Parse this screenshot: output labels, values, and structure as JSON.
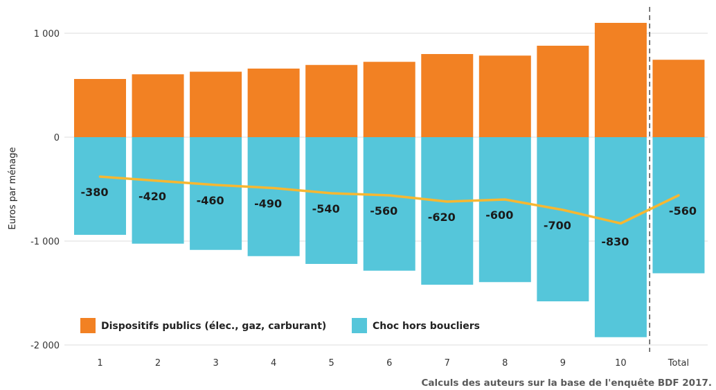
{
  "chart_data": {
    "type": "bar",
    "categories": [
      "1",
      "2",
      "3",
      "4",
      "5",
      "6",
      "7",
      "8",
      "9",
      "10",
      "Total"
    ],
    "series": [
      {
        "name": "Dispositifs publics (élec., gaz, carburant)",
        "values": [
          560,
          605,
          630,
          660,
          695,
          725,
          800,
          785,
          880,
          1100,
          745
        ]
      },
      {
        "name": "Choc hors boucliers",
        "values": [
          -940,
          -1025,
          -1085,
          -1145,
          -1220,
          -1285,
          -1420,
          -1395,
          -1580,
          -1925,
          -1310
        ]
      },
      {
        "name": "",
        "type": "line",
        "values": [
          -380,
          -420,
          -460,
          -490,
          -540,
          -560,
          -620,
          -600,
          -700,
          -830,
          -560
        ],
        "labels": [
          "-380",
          "-420",
          "-460",
          "-490",
          "-540",
          "-560",
          "-620",
          "-600",
          "-700",
          "-830",
          "-560"
        ]
      }
    ],
    "title": "",
    "xlabel": "",
    "ylabel": "Euros par ménage",
    "ylim": [
      -2000,
      1000
    ],
    "yticks": [
      -2000,
      -1000,
      0,
      1000
    ],
    "ytick_labels": [
      "-2 000",
      "-1 000",
      "0",
      "1 000"
    ],
    "grid": true,
    "separator_before": "Total",
    "legend_position": "bottom-left",
    "colors": {
      "positive": "#F28123",
      "negative": "#55C6DA",
      "line": "#F7B731",
      "grid": "#DDDDDD"
    }
  },
  "source": "Calculs des auteurs sur la base de l'enquête BDF 2017."
}
